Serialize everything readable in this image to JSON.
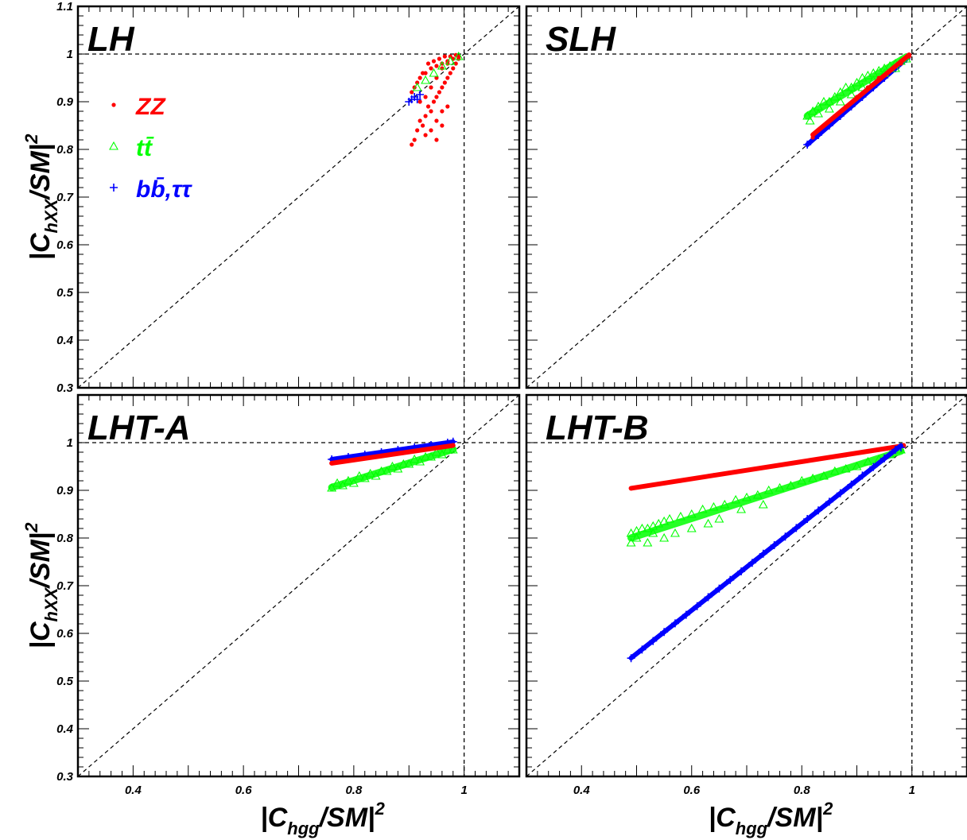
{
  "chart_data": [
    {
      "panel_label": "LH",
      "type": "scatter",
      "xlim": [
        0.3,
        1.1
      ],
      "ylim": [
        0.3,
        1.1
      ],
      "ylabel": "|C_{hXX}/SM|^2",
      "legend_placement": "top-left",
      "legend": [
        {
          "marker": "dot",
          "label": "ZZ",
          "color": "#ff0000"
        },
        {
          "marker": "triangle",
          "label": "tt̄",
          "color": "#00ff00"
        },
        {
          "marker": "plus",
          "label": "bb̄,ττ",
          "color": "#0000ff"
        }
      ],
      "series": [
        {
          "name": "ZZ",
          "color": "#ff0000",
          "marker": "dot",
          "x": [
            0.905,
            0.91,
            0.915,
            0.92,
            0.925,
            0.93,
            0.935,
            0.94,
            0.945,
            0.95,
            0.955,
            0.96,
            0.965,
            0.97,
            0.975,
            0.98,
            0.985,
            0.99,
            0.91,
            0.92,
            0.93,
            0.94,
            0.95,
            0.96,
            0.97,
            0.98,
            0.99,
            0.905,
            0.915,
            0.925,
            0.935,
            0.945,
            0.955,
            0.965,
            0.975,
            0.985,
            0.92,
            0.93,
            0.94,
            0.95,
            0.96,
            0.97,
            0.93,
            0.94,
            0.95,
            0.96,
            0.95,
            0.96,
            0.97
          ],
          "y": [
            0.81,
            0.82,
            0.84,
            0.86,
            0.85,
            0.87,
            0.89,
            0.88,
            0.9,
            0.91,
            0.92,
            0.93,
            0.94,
            0.95,
            0.96,
            0.97,
            0.98,
            0.995,
            0.93,
            0.95,
            0.96,
            0.97,
            0.975,
            0.98,
            0.985,
            0.99,
            0.99,
            0.92,
            0.94,
            0.96,
            0.98,
            0.985,
            0.99,
            0.995,
            0.995,
            0.998,
            0.9,
            0.91,
            0.93,
            0.95,
            0.97,
            0.98,
            0.83,
            0.84,
            0.86,
            0.88,
            0.82,
            0.85,
            0.89
          ]
        },
        {
          "name": "tt̄",
          "color": "#00ff00",
          "marker": "triangle",
          "x": [
            0.915,
            0.93,
            0.945,
            0.96,
            0.975,
            0.99
          ],
          "y": [
            0.93,
            0.945,
            0.96,
            0.975,
            0.985,
            0.995
          ]
        },
        {
          "name": "bb̄,ττ",
          "color": "#0000ff",
          "marker": "plus",
          "x": [
            0.9,
            0.905,
            0.91,
            0.915,
            0.92
          ],
          "y": [
            0.9,
            0.905,
            0.91,
            0.905,
            0.915
          ]
        }
      ]
    },
    {
      "panel_label": "SLH",
      "type": "scatter",
      "xlim": [
        0.3,
        1.1
      ],
      "ylim": [
        0.3,
        1.1
      ],
      "series": [
        {
          "name": "bb̄,ττ",
          "color": "#0000ff",
          "marker": "plus",
          "x": [
            0.81,
            0.83,
            0.85,
            0.87,
            0.89,
            0.91,
            0.93,
            0.95,
            0.97,
            0.99
          ],
          "y": [
            0.81,
            0.83,
            0.85,
            0.87,
            0.89,
            0.91,
            0.93,
            0.95,
            0.97,
            0.99
          ]
        },
        {
          "name": "tt̄",
          "color": "#00ff00",
          "marker": "triangle",
          "x": [
            0.81,
            0.815,
            0.82,
            0.83,
            0.84,
            0.85,
            0.86,
            0.87,
            0.88,
            0.89,
            0.9,
            0.91,
            0.92,
            0.93,
            0.94,
            0.95,
            0.96,
            0.97,
            0.98,
            0.99,
            0.83,
            0.85,
            0.87,
            0.89,
            0.91,
            0.93,
            0.95,
            0.97
          ],
          "y": [
            0.87,
            0.86,
            0.88,
            0.89,
            0.9,
            0.9,
            0.91,
            0.92,
            0.93,
            0.93,
            0.94,
            0.95,
            0.955,
            0.96,
            0.965,
            0.97,
            0.975,
            0.98,
            0.985,
            0.99,
            0.875,
            0.885,
            0.9,
            0.915,
            0.93,
            0.945,
            0.96,
            0.97
          ]
        },
        {
          "name": "ZZ",
          "color": "#ff0000",
          "marker": "dot",
          "x": [
            0.82,
            0.84,
            0.86,
            0.88,
            0.9,
            0.92,
            0.94,
            0.96,
            0.98,
            0.995
          ],
          "y": [
            0.825,
            0.85,
            0.87,
            0.89,
            0.91,
            0.93,
            0.95,
            0.965,
            0.98,
            0.995
          ]
        }
      ]
    },
    {
      "panel_label": "LHT-A",
      "type": "scatter",
      "xlim": [
        0.3,
        1.1
      ],
      "ylim": [
        0.3,
        1.1
      ],
      "xlabel": "|C_{hgg}/SM|^2",
      "ylabel": "|C_{hXX}/SM|^2",
      "series": [
        {
          "name": "tt̄",
          "color": "#00ff00",
          "marker": "triangle",
          "x": [
            0.76,
            0.78,
            0.8,
            0.82,
            0.84,
            0.86,
            0.88,
            0.9,
            0.92,
            0.94,
            0.96,
            0.98,
            0.77,
            0.79,
            0.81,
            0.83,
            0.85,
            0.87,
            0.89,
            0.91,
            0.93,
            0.95,
            0.97
          ],
          "y": [
            0.905,
            0.91,
            0.915,
            0.925,
            0.93,
            0.94,
            0.945,
            0.955,
            0.96,
            0.97,
            0.975,
            0.985,
            0.915,
            0.92,
            0.93,
            0.935,
            0.94,
            0.95,
            0.955,
            0.965,
            0.97,
            0.98,
            0.985
          ]
        },
        {
          "name": "bb̄,ττ",
          "color": "#0000ff",
          "marker": "plus",
          "x": [
            0.76,
            0.79,
            0.82,
            0.85,
            0.88,
            0.91,
            0.94,
            0.97,
            0.98
          ],
          "y": [
            0.965,
            0.97,
            0.975,
            0.98,
            0.985,
            0.99,
            0.995,
            1.0,
            1.002
          ]
        },
        {
          "name": "ZZ",
          "color": "#ff0000",
          "marker": "dot",
          "x": [
            0.76,
            0.79,
            0.82,
            0.85,
            0.88,
            0.91,
            0.94,
            0.97,
            0.98
          ],
          "y": [
            0.957,
            0.962,
            0.967,
            0.972,
            0.977,
            0.982,
            0.987,
            0.992,
            0.995
          ]
        }
      ]
    },
    {
      "panel_label": "LHT-B",
      "type": "scatter",
      "xlim": [
        0.3,
        1.1
      ],
      "ylim": [
        0.3,
        1.1
      ],
      "xlabel": "|C_{hgg}/SM|^2",
      "series": [
        {
          "name": "ZZ",
          "color": "#ff0000",
          "marker": "dot",
          "x": [
            0.49,
            0.52,
            0.55,
            0.58,
            0.61,
            0.64,
            0.67,
            0.7,
            0.73,
            0.76,
            0.79,
            0.82,
            0.85,
            0.88,
            0.91,
            0.94,
            0.97,
            0.985
          ],
          "y": [
            0.904,
            0.91,
            0.915,
            0.92,
            0.926,
            0.932,
            0.937,
            0.942,
            0.948,
            0.953,
            0.958,
            0.964,
            0.969,
            0.974,
            0.98,
            0.985,
            0.99,
            0.995
          ]
        },
        {
          "name": "tt̄",
          "color": "#00ff00",
          "marker": "triangle",
          "x": [
            0.49,
            0.5,
            0.51,
            0.52,
            0.53,
            0.54,
            0.55,
            0.56,
            0.58,
            0.6,
            0.62,
            0.64,
            0.66,
            0.68,
            0.7,
            0.72,
            0.74,
            0.76,
            0.78,
            0.8,
            0.82,
            0.84,
            0.86,
            0.88,
            0.9,
            0.92,
            0.94,
            0.96,
            0.98,
            0.49,
            0.5,
            0.52,
            0.53,
            0.55,
            0.57,
            0.6,
            0.63,
            0.65,
            0.69,
            0.73
          ],
          "y": [
            0.81,
            0.815,
            0.82,
            0.82,
            0.825,
            0.83,
            0.835,
            0.84,
            0.845,
            0.85,
            0.86,
            0.865,
            0.87,
            0.88,
            0.885,
            0.89,
            0.9,
            0.905,
            0.91,
            0.92,
            0.925,
            0.93,
            0.94,
            0.945,
            0.95,
            0.96,
            0.965,
            0.975,
            0.985,
            0.79,
            0.8,
            0.79,
            0.81,
            0.8,
            0.81,
            0.82,
            0.83,
            0.84,
            0.86,
            0.87
          ]
        },
        {
          "name": "bb̄,ττ",
          "color": "#0000ff",
          "marker": "plus",
          "x": [
            0.49,
            0.51,
            0.53,
            0.55,
            0.57,
            0.59,
            0.61,
            0.63,
            0.65,
            0.67,
            0.69,
            0.71,
            0.73,
            0.75,
            0.77,
            0.79,
            0.81,
            0.83,
            0.85,
            0.87,
            0.89,
            0.91,
            0.93,
            0.95,
            0.97,
            0.98
          ],
          "y": [
            0.548,
            0.566,
            0.584,
            0.603,
            0.621,
            0.639,
            0.657,
            0.676,
            0.694,
            0.712,
            0.73,
            0.748,
            0.767,
            0.785,
            0.803,
            0.821,
            0.84,
            0.858,
            0.876,
            0.894,
            0.912,
            0.931,
            0.949,
            0.967,
            0.985,
            0.99
          ]
        }
      ]
    }
  ]
}
